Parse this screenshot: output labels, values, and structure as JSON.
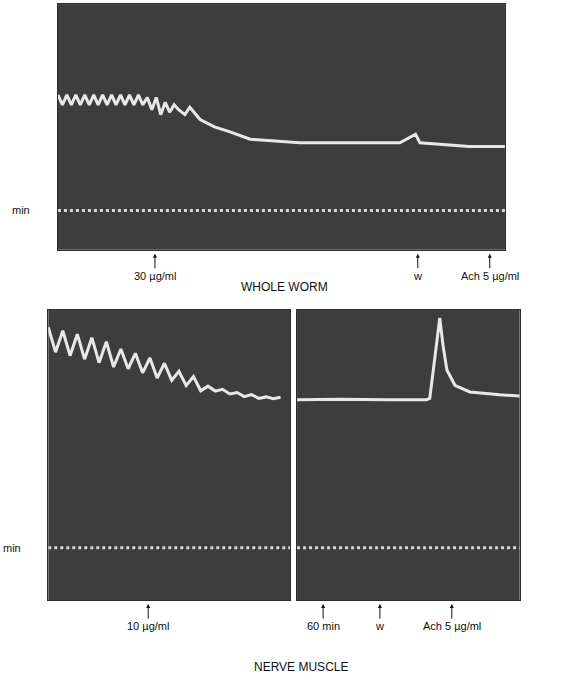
{
  "chart_data": [
    {
      "type": "line",
      "title": "WHOLE WORM",
      "xlim": [
        0,
        100
      ],
      "ylim": [
        0,
        100
      ],
      "grid": false,
      "tick_labels": false,
      "series": [
        {
          "name": "min",
          "x": [
            0,
            100
          ],
          "values": [
            16,
            16
          ],
          "color": "#d8d8d8",
          "line_style": "dotted"
        },
        {
          "x": [
            0,
            1,
            2,
            3,
            4,
            5,
            6,
            7,
            8,
            9,
            10,
            11,
            12,
            13,
            14,
            15,
            16,
            17,
            18,
            19,
            20,
            21,
            22,
            23,
            24,
            25,
            26,
            27,
            28.4,
            29.5,
            31.8,
            35,
            38.5,
            43,
            54,
            76.5,
            80,
            81,
            92,
            100
          ],
          "values": [
            63,
            59,
            63,
            59,
            63,
            59,
            63,
            59,
            63,
            59,
            63,
            59,
            63,
            59,
            63,
            59,
            63,
            59,
            63,
            59,
            62,
            57,
            62,
            55,
            60,
            56,
            59,
            57,
            55,
            58,
            53,
            50,
            48,
            45,
            43.5,
            43.5,
            47,
            43.5,
            42,
            42
          ],
          "color": "#e8e8e8",
          "line_style": "solid"
        }
      ],
      "annotations": [
        {
          "text": "30 µg/ml",
          "x": 21.7
        },
        {
          "text": "w",
          "x": 80.5
        },
        {
          "text": "Ach 5 µg/ml",
          "x": 96.6
        }
      ]
    },
    {
      "type": "line",
      "title": "NERVE MUSCLE",
      "xlim": [
        0,
        100
      ],
      "ylim": [
        0,
        100
      ],
      "grid": false,
      "tick_labels": false,
      "series": [
        {
          "name": "min",
          "x": [
            0,
            100
          ],
          "values": [
            18,
            18
          ],
          "color": "#d8d8d8",
          "line_style": "dotted"
        },
        {
          "x": [
            0,
            3,
            6,
            9,
            12,
            15,
            18,
            21,
            24,
            27,
            30,
            33,
            36,
            39,
            42,
            45,
            48,
            51,
            54,
            57,
            60,
            63,
            66,
            69,
            72,
            75,
            78,
            81,
            84,
            87,
            90,
            93,
            96
          ],
          "values": [
            94,
            85.4,
            92.8,
            84.2,
            91.6,
            83,
            90.4,
            81.8,
            89,
            80.3,
            86.5,
            79.7,
            85,
            78.3,
            83.4,
            76.5,
            81.6,
            75.7,
            78.8,
            73.9,
            77,
            72.1,
            73.7,
            72,
            72.6,
            71,
            71.5,
            70.1,
            70.8,
            69.5,
            70,
            69.4,
            69.9
          ],
          "color": "#e8e8e8",
          "line_style": "solid"
        }
      ],
      "annotations": [
        {
          "text": "10 µg/ml",
          "x": 41.3
        }
      ]
    },
    {
      "type": "line",
      "xlim": [
        0,
        100
      ],
      "ylim": [
        0,
        100
      ],
      "grid": false,
      "tick_labels": false,
      "series": [
        {
          "x": [
            0,
            100
          ],
          "values": [
            18,
            18
          ],
          "color": "#d8d8d8",
          "line_style": "dotted"
        },
        {
          "x": [
            0,
            20,
            40,
            58,
            59.6,
            64.1,
            65.5,
            67.3,
            70.9,
            77.6,
            91,
            100
          ],
          "values": [
            69,
            69.2,
            69,
            69,
            69.5,
            97.2,
            88,
            79.3,
            74,
            71.7,
            70.7,
            70.3
          ],
          "color": "#e8e8e8",
          "line_style": "solid"
        }
      ],
      "annotations": [
        {
          "text": "60 min",
          "x": 11.7
        },
        {
          "text": "w",
          "x": 37.2
        },
        {
          "text": "Ach 5 µg/ml",
          "x": 69.5
        }
      ]
    }
  ]
}
